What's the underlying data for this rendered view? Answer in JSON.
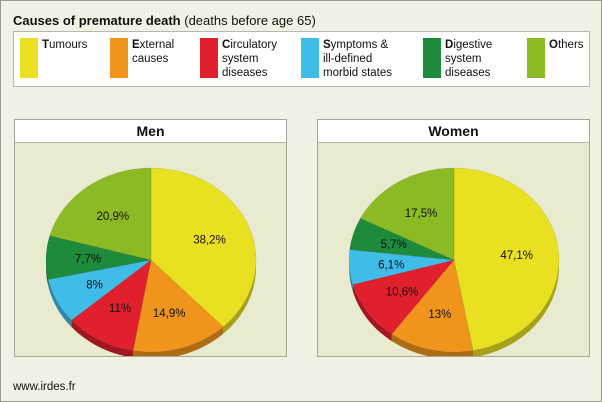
{
  "title": {
    "bold": "Causes of premature death",
    "rest": "(deaths before age 65)"
  },
  "legend": [
    {
      "label": "Tumours",
      "color": "#e8e020"
    },
    {
      "label": "External\ncauses",
      "color": "#f0941c"
    },
    {
      "label": "Circulatory\nsystem\ndiseases",
      "color": "#e0202c"
    },
    {
      "label": "Symptoms &\nill-defined\nmorbid states",
      "color": "#40bce8"
    },
    {
      "label": "Digestive\nsystem\ndiseases",
      "color": "#1e8a3c"
    },
    {
      "label": "Others",
      "color": "#8cba24"
    }
  ],
  "chart_data": [
    {
      "type": "pie",
      "title": "Men",
      "categories": [
        "Tumours",
        "External causes",
        "Circulatory system diseases",
        "Symptoms & ill-defined morbid states",
        "Digestive system diseases",
        "Others"
      ],
      "values": [
        38.2,
        14.9,
        11,
        8,
        7.7,
        20.9
      ],
      "labels": [
        "38,2%",
        "14,9%",
        "11%",
        "8%",
        "7,7%",
        "20,9%"
      ],
      "colors": [
        "#e8e020",
        "#f0941c",
        "#e0202c",
        "#40bce8",
        "#1e8a3c",
        "#8cba24"
      ]
    },
    {
      "type": "pie",
      "title": "Women",
      "categories": [
        "Tumours",
        "External causes",
        "Circulatory system diseases",
        "Symptoms & ill-defined morbid states",
        "Digestive system diseases",
        "Others"
      ],
      "values": [
        47.1,
        13,
        10.6,
        6.1,
        5.7,
        17.5
      ],
      "labels": [
        "47,1%",
        "13%",
        "10,6%",
        "6,1%",
        "5,7%",
        "17,5%"
      ],
      "colors": [
        "#e8e020",
        "#f0941c",
        "#e0202c",
        "#40bce8",
        "#1e8a3c",
        "#8cba24"
      ]
    }
  ],
  "footer": "www.irdes.fr"
}
